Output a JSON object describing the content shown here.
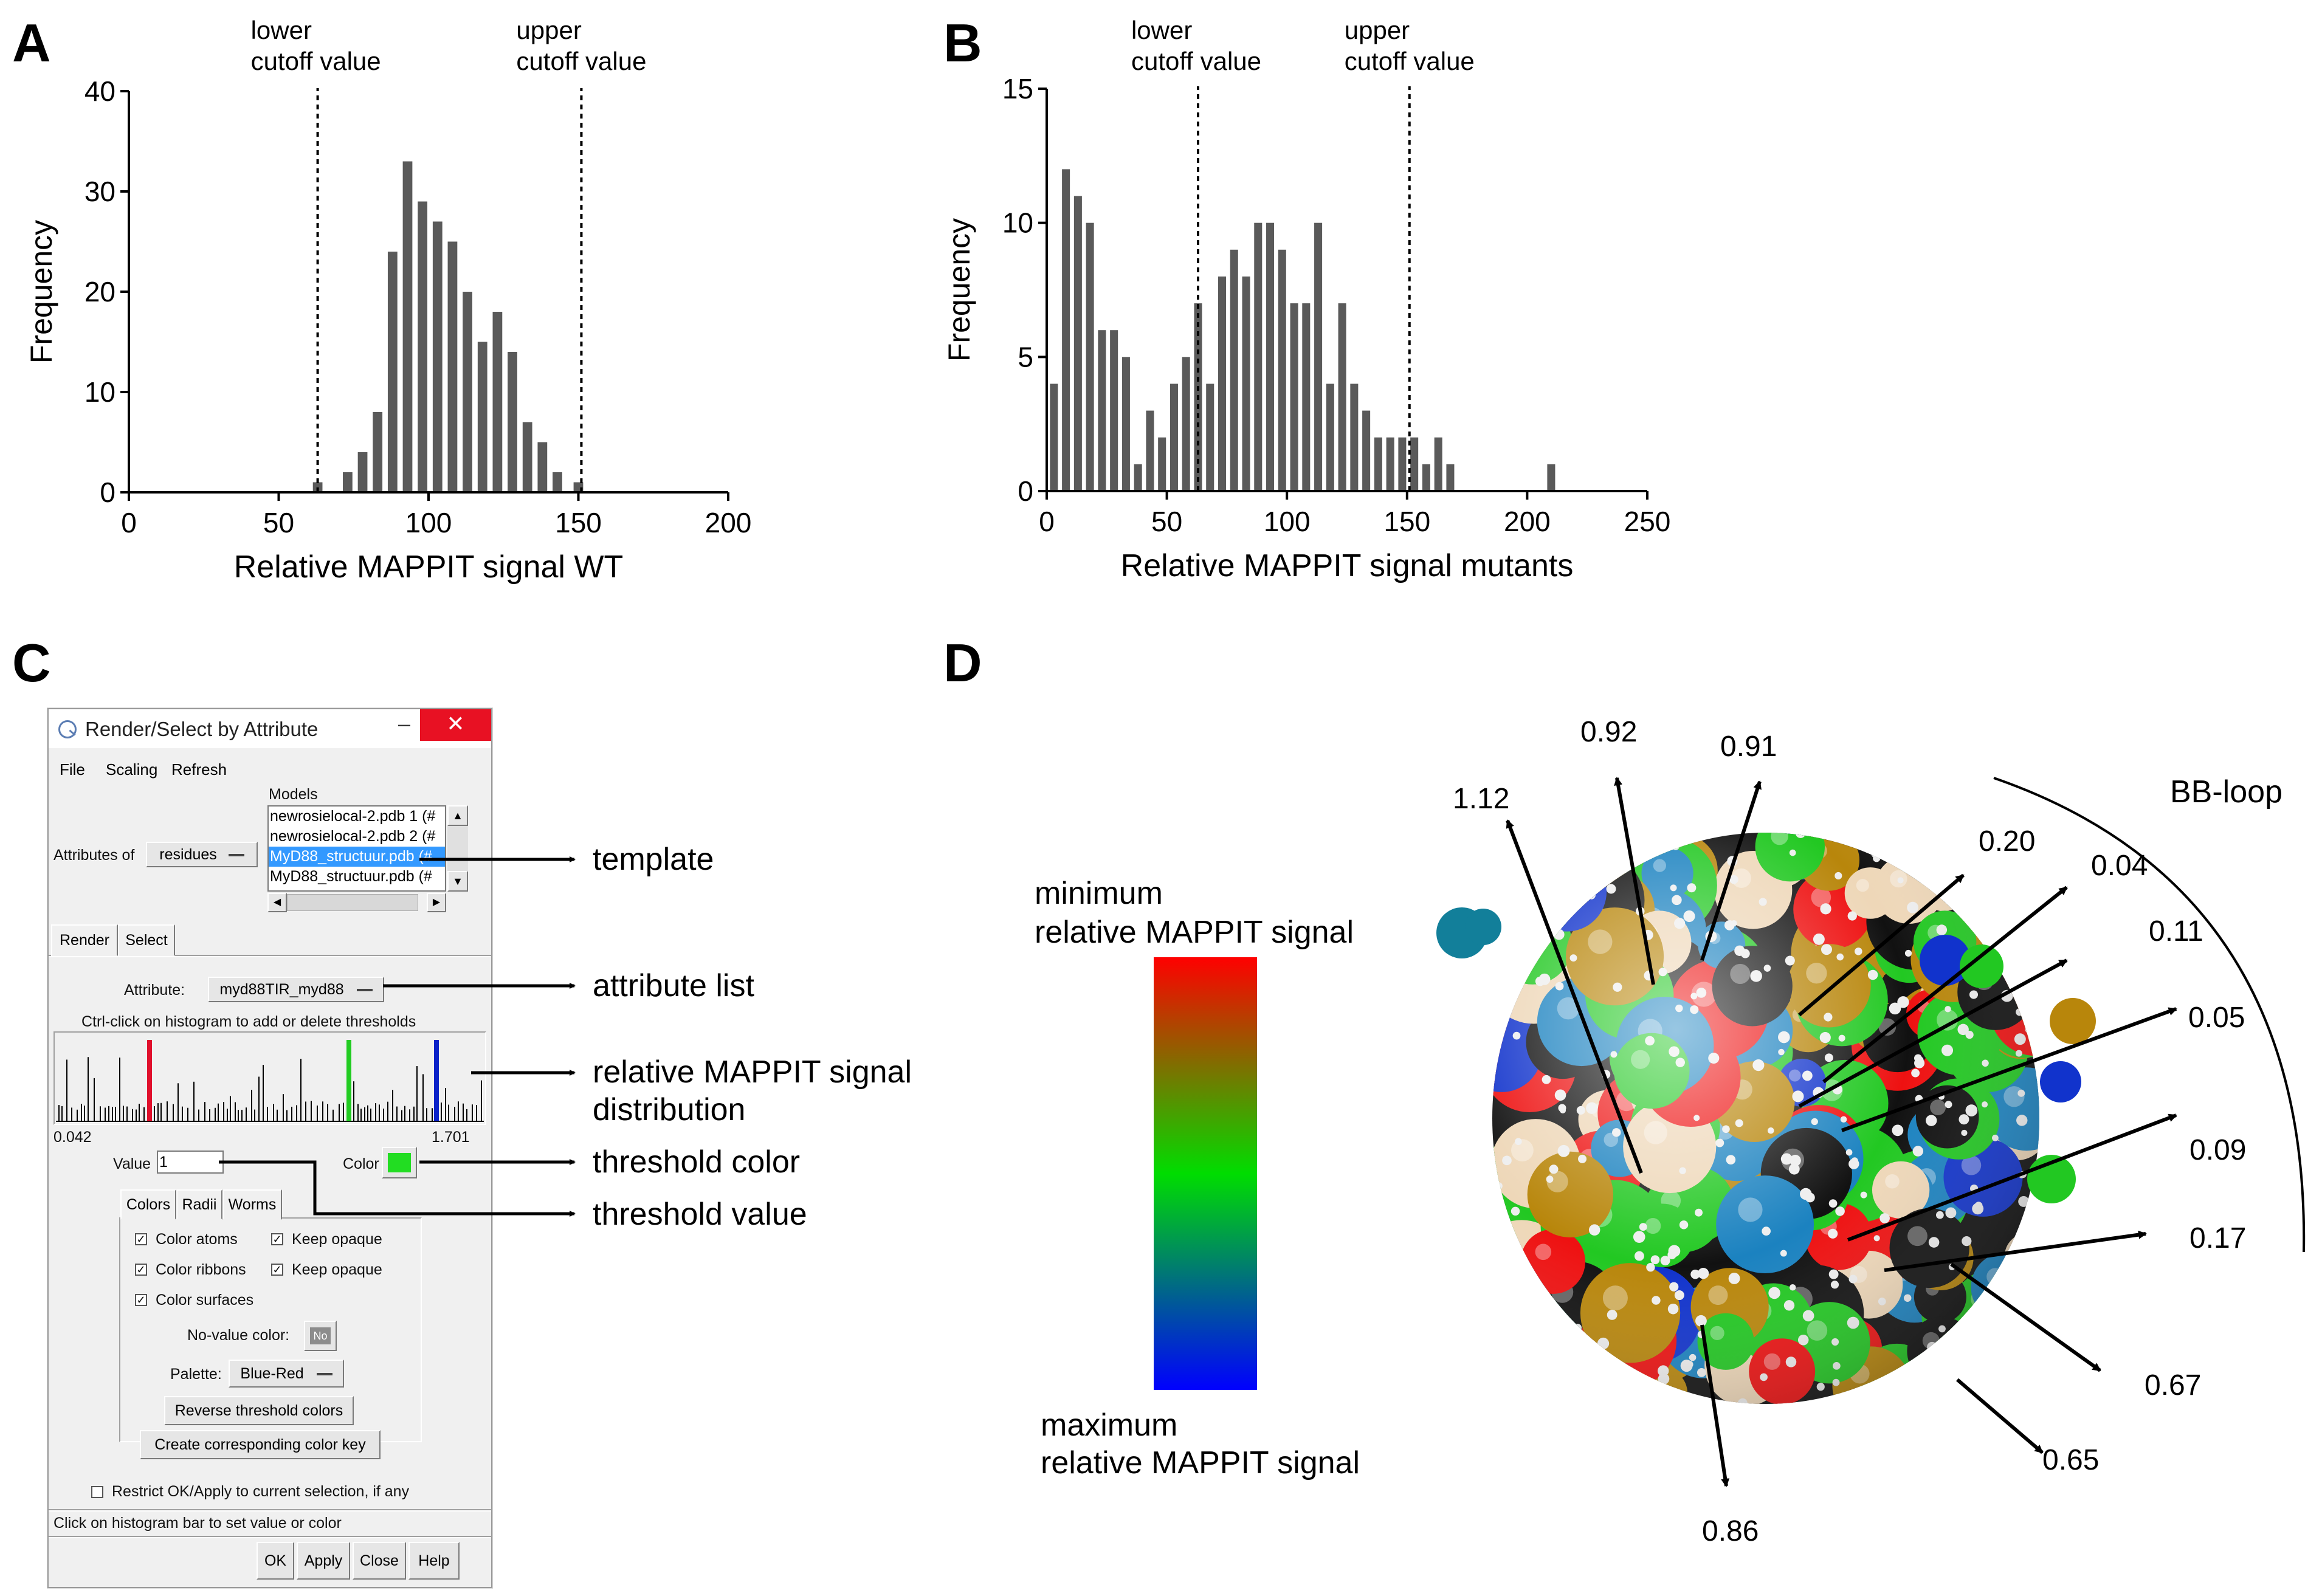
{
  "panels": {
    "A": {
      "letter": "A",
      "chart_data": {
        "type": "bar",
        "x": [
          63,
          73,
          78,
          83,
          88,
          93,
          98,
          103,
          108,
          113,
          118,
          123,
          128,
          133,
          138,
          143,
          150
        ],
        "values": [
          1,
          2,
          4,
          8,
          24,
          33,
          29,
          27,
          25,
          20,
          15,
          18,
          14,
          7,
          5,
          2,
          1
        ],
        "bin_width": 3.2,
        "xlabel": "Relative MAPPIT signal WT",
        "ylabel": "Frequency",
        "xlim": [
          0,
          200
        ],
        "ylim": [
          0,
          40
        ],
        "xticks": [
          0,
          50,
          100,
          150,
          200
        ],
        "yticks": [
          0,
          10,
          20,
          30,
          40
        ],
        "cutoffs": [
          {
            "x": 63,
            "label_line1": "lower",
            "label_line2": "cutoff value"
          },
          {
            "x": 151,
            "label_line1": "upper",
            "label_line2": "cutoff value"
          }
        ],
        "bar_color": "#5a5a5a"
      }
    },
    "B": {
      "letter": "B",
      "chart_data": {
        "type": "bar",
        "x": [
          3,
          8,
          13,
          18,
          23,
          28,
          33,
          38,
          43,
          48,
          53,
          58,
          63,
          68,
          73,
          78,
          83,
          88,
          93,
          98,
          103,
          108,
          113,
          118,
          123,
          128,
          133,
          138,
          143,
          148,
          153,
          158,
          163,
          168,
          210
        ],
        "values": [
          4,
          12,
          11,
          10,
          6,
          6,
          5,
          1,
          3,
          2,
          4,
          5,
          7,
          4,
          8,
          9,
          8,
          10,
          10,
          9,
          7,
          7,
          10,
          4,
          7,
          4,
          3,
          2,
          2,
          2,
          2,
          1,
          2,
          1,
          1
        ],
        "bin_width": 3.3,
        "xlabel": "Relative MAPPIT signal mutants",
        "ylabel": "Frequency",
        "xlim": [
          0,
          250
        ],
        "ylim": [
          0,
          15
        ],
        "xticks": [
          0,
          50,
          100,
          150,
          200,
          250
        ],
        "yticks": [
          0,
          5,
          10,
          15
        ],
        "cutoffs": [
          {
            "x": 63,
            "label_line1": "lower",
            "label_line2": "cutoff value"
          },
          {
            "x": 151,
            "label_line1": "upper",
            "label_line2": "cutoff value"
          }
        ],
        "bar_color": "#5a5a5a"
      }
    },
    "C": {
      "letter": "C",
      "dialog": {
        "title": "Render/Select by Attribute",
        "menu": [
          "File",
          "Scaling",
          "Refresh"
        ],
        "models_label": "Models",
        "attributes_of_label": "Attributes of",
        "attributes_of_value": "residues",
        "models": [
          "newrosielocal-2.pdb 1 (#",
          "newrosielocal-2.pdb 2 (#",
          "MyD88_structuur.pdb (#",
          "MyD88_structuur.pdb (#"
        ],
        "selected_model_index": 2,
        "tabs": [
          "Render",
          "Select"
        ],
        "attribute_label": "Attribute:",
        "attribute_value": "myd88TIR_myd88",
        "histogram_hint": "Ctrl-click on histogram to add or delete thresholds",
        "hist_min": "0.042",
        "hist_max": "1.701",
        "value_label": "Value",
        "value": "1",
        "color_label": "Color",
        "color_value": "#22dd22",
        "subtabs": [
          "Colors",
          "Radii",
          "Worms"
        ],
        "options": {
          "color_atoms": "Color atoms",
          "keep_opaque_1": "Keep opaque",
          "color_ribbons": "Color ribbons",
          "keep_opaque_2": "Keep opaque",
          "color_surfaces": "Color surfaces"
        },
        "no_value_label": "No-value color:",
        "no_value_button": "No",
        "palette_label": "Palette:",
        "palette_value": "Blue-Red",
        "reverse_button": "Reverse threshold colors",
        "color_key_button": "Create corresponding color key",
        "restrict_label": "Restrict OK/Apply to current selection, if any",
        "status": "Click on histogram bar to set value or color",
        "buttons": [
          "OK",
          "Apply",
          "Close",
          "Help"
        ]
      },
      "annotations": [
        "template",
        "attribute list",
        "relative MAPPIT signal",
        "distribution",
        "threshold color",
        "threshold value"
      ]
    },
    "D": {
      "letter": "D",
      "legend_top_line1": "minimum",
      "legend_top_line2": "relative MAPPIT signal",
      "legend_bottom_line1": "maximum",
      "legend_bottom_line2": "relative MAPPIT signal",
      "gradient_colors": [
        "#ff0000",
        "#00dd00",
        "#0000ff"
      ],
      "region_label": "BB-loop",
      "value_labels": [
        "1.12",
        "0.92",
        "0.91",
        "0.20",
        "0.04",
        "0.11",
        "0.05",
        "0.09",
        "0.17",
        "0.67",
        "0.65",
        "0.86"
      ]
    }
  }
}
